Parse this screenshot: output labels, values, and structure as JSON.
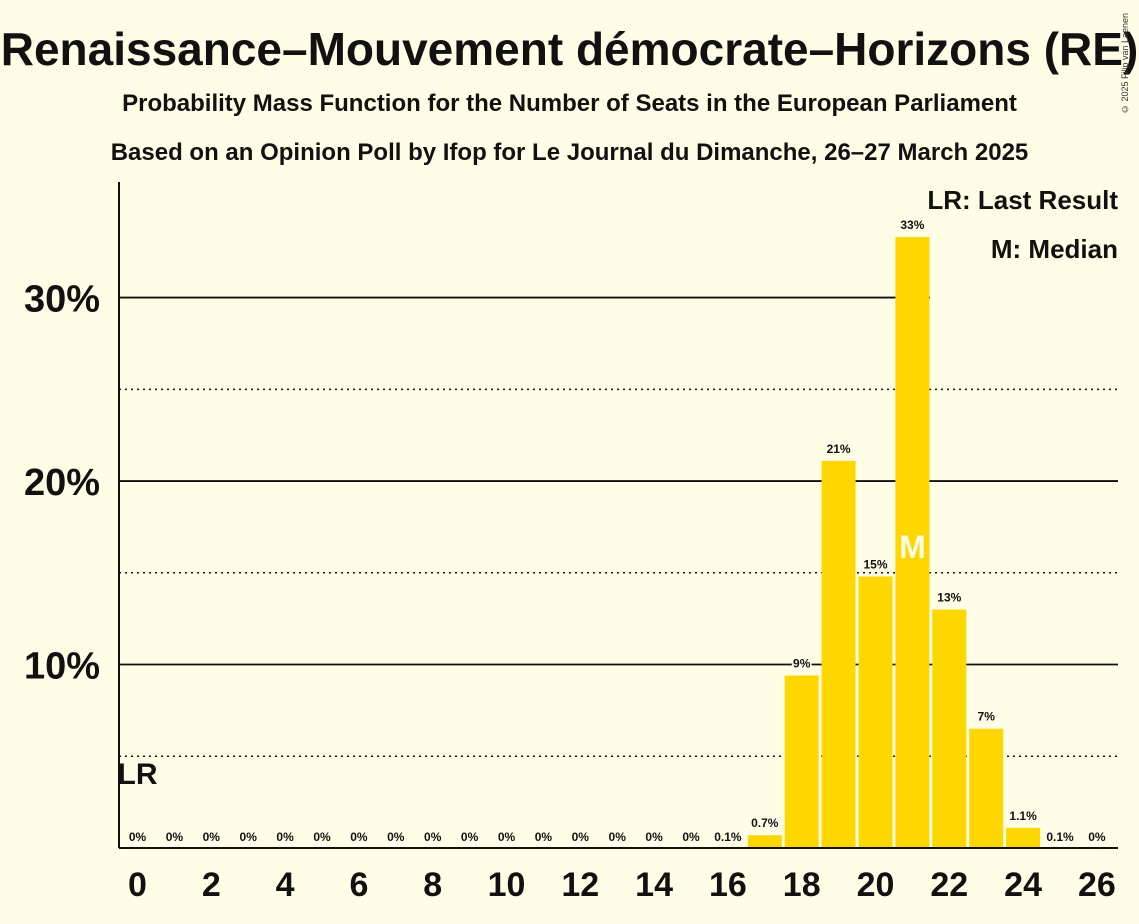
{
  "copyright": "© 2025 Filip van Laenen",
  "chart_data": {
    "type": "bar",
    "title": "Renaissance–Mouvement démocrate–Horizons (RE)",
    "subtitle": "Probability Mass Function for the Number of Seats in the European Parliament",
    "subtitle2": "Based on an Opinion Poll by Ifop for Le Journal du Dimanche, 26–27 March 2025",
    "categories": [
      0,
      1,
      2,
      3,
      4,
      5,
      6,
      7,
      8,
      9,
      10,
      11,
      12,
      13,
      14,
      15,
      16,
      17,
      18,
      19,
      20,
      21,
      22,
      23,
      24,
      25,
      26
    ],
    "values": [
      0,
      0,
      0,
      0,
      0,
      0,
      0,
      0,
      0,
      0,
      0,
      0,
      0,
      0,
      0,
      0,
      0.05,
      0.7,
      9.4,
      21.1,
      14.8,
      33.3,
      13.0,
      6.5,
      1.1,
      0.05,
      0
    ],
    "value_labels": [
      "0%",
      "0%",
      "0%",
      "0%",
      "0%",
      "0%",
      "0%",
      "0%",
      "0%",
      "0%",
      "0%",
      "0%",
      "0%",
      "0%",
      "0%",
      "0%",
      "0.1%",
      "0.7%",
      "9%",
      "21%",
      "15%",
      "33%",
      "13%",
      "7%",
      "1.1%",
      "0.1%",
      "0%"
    ],
    "x_tick_labels": [
      "0",
      "2",
      "4",
      "6",
      "8",
      "10",
      "12",
      "14",
      "16",
      "18",
      "20",
      "22",
      "24",
      "26"
    ],
    "y_tick_labels": [
      "10%",
      "20%",
      "30%"
    ],
    "y_ticks": [
      10,
      20,
      30
    ],
    "y_minor_ticks": [
      5,
      15,
      25
    ],
    "ylim": [
      0,
      36.3
    ],
    "median_seat": 21,
    "median_marker": "M",
    "last_result_seat": 0,
    "last_result_marker": "LR",
    "legend": [
      "LR: Last Result",
      "M: Median"
    ],
    "legend_position": "top-right",
    "bar_color": "#ffd700",
    "median_color": "#fffde6",
    "background": "#fffde6"
  }
}
